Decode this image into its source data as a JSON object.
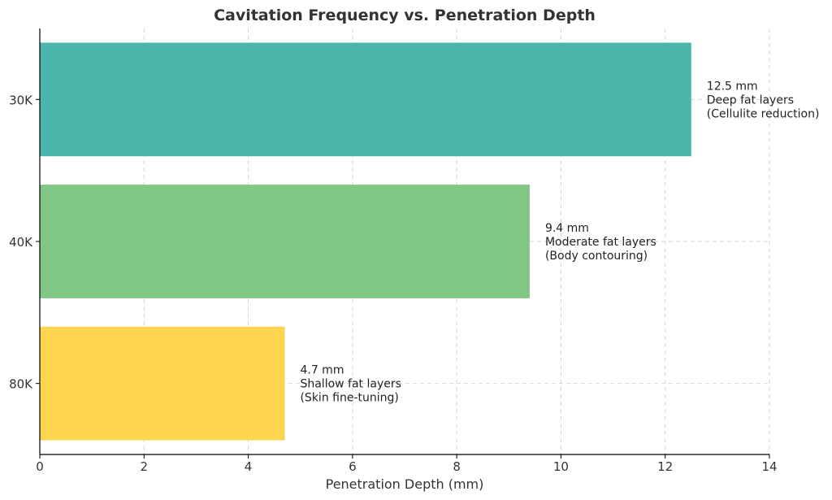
{
  "chart_data": {
    "type": "bar",
    "orientation": "horizontal",
    "title": "Cavitation Frequency vs. Penetration Depth",
    "xlabel": "Penetration Depth (mm)",
    "ylabel": "",
    "xlim": [
      0,
      14
    ],
    "xticks": [
      "0",
      "2",
      "4",
      "6",
      "8",
      "10",
      "12",
      "14"
    ],
    "grid": true,
    "categories": [
      "30K",
      "40K",
      "80K"
    ],
    "values": [
      12.5,
      9.4,
      4.7
    ],
    "colors": [
      "#4db6ac",
      "#81c784",
      "#ffd54f"
    ],
    "annotations": [
      [
        "12.5 mm",
        "Deep fat layers",
        "(Cellulite reduction)"
      ],
      [
        "9.4 mm",
        "Moderate fat layers",
        "(Body contouring)"
      ],
      [
        "4.7 mm",
        "Shallow fat layers",
        "(Skin fine-tuning)"
      ]
    ]
  }
}
